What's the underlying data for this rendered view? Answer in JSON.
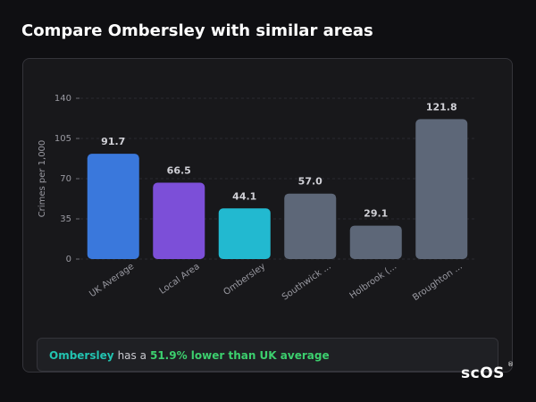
{
  "chart_data": {
    "type": "bar",
    "title": "Compare Ombersley with similar areas",
    "y_label": "Crimes per 1,000",
    "categories": [
      "UK Average",
      "Local Area",
      "Ombersley",
      "Southwick ...",
      "Holbrook (...",
      "Broughton ..."
    ],
    "values": [
      91.7,
      66.5,
      44.1,
      57.0,
      29.1,
      121.8
    ],
    "value_labels": [
      "91.7",
      "66.5",
      "44.1",
      "57.0",
      "29.1",
      "121.8"
    ],
    "colors": [
      "#3a78dc",
      "#7c4fd8",
      "#22b9d0",
      "#5d6778",
      "#5d6778",
      "#5d6778"
    ],
    "ylim": [
      0,
      140
    ],
    "yticks": [
      0,
      35,
      70,
      105,
      140
    ],
    "grid": true,
    "summary": {
      "area": "Ombersley",
      "text": "has a",
      "highlight": "51.9% lower than UK average"
    },
    "brand": "scOS",
    "brand_mark": "®"
  }
}
